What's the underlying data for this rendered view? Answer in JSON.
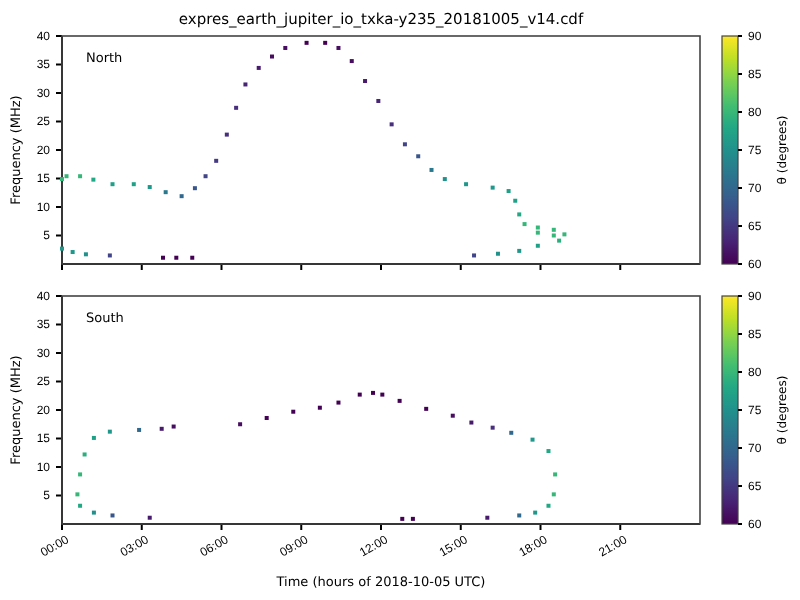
{
  "chart_data": [
    {
      "type": "scatter",
      "title": "expres_earth_jupiter_io_txka-y235_20181005_v14.cdf",
      "ylabel": "Frequency (MHz)",
      "clabel": "θ (degrees)",
      "annotations": [
        "North"
      ],
      "x": [
        0,
        0.17,
        0.68,
        1.18,
        1.9,
        2.7,
        3.3,
        3.9,
        4.5,
        5,
        5.4,
        5.8,
        6.2,
        6.55,
        6.9,
        7.4,
        7.9,
        8.4,
        9.2,
        9.9,
        10.4,
        10.9,
        11.4,
        11.9,
        12.4,
        12.9,
        13.4,
        13.9,
        14.4,
        15.2,
        16.2,
        16.8,
        17.05,
        17.2,
        17.4,
        17.9,
        18.5,
        18.9,
        18.5,
        17.9,
        18.7,
        17.9,
        17.2,
        16.4,
        15.5,
        0,
        0.4,
        0.9,
        1.8,
        3.8,
        4.3,
        4.9
      ],
      "values": [
        14.9,
        15.4,
        15.4,
        14.8,
        14,
        14,
        13.5,
        12.6,
        11.9,
        13.3,
        15.4,
        18.1,
        22.7,
        27.4,
        31.5,
        34.4,
        36.4,
        37.9,
        38.8,
        38.8,
        37.9,
        35.6,
        32.1,
        28.6,
        24.5,
        21,
        18.9,
        16.5,
        14.9,
        14,
        13.4,
        12.8,
        11.1,
        8.7,
        7,
        6.4,
        6,
        5.2,
        5,
        5.5,
        4.1,
        3.2,
        2.3,
        1.8,
        1.5,
        2.7,
        2.1,
        1.7,
        1.5,
        1.1,
        1.1,
        1.1
      ],
      "cvalues": [
        80,
        80,
        80,
        78,
        77,
        77,
        76,
        72,
        70,
        68,
        66,
        65,
        64,
        64,
        63,
        62,
        61,
        61,
        60,
        60,
        61,
        61,
        62,
        63,
        64,
        66,
        68,
        72,
        75,
        76,
        76,
        77,
        77,
        78,
        80,
        80,
        80,
        80,
        80,
        80,
        79,
        77,
        76,
        75,
        66,
        76,
        76,
        75,
        66,
        60,
        60,
        60
      ],
      "xlim": [
        0,
        24
      ],
      "xticks": [
        0,
        3,
        6,
        9,
        12,
        15,
        18,
        21
      ],
      "ylim": [
        0,
        40
      ],
      "yticks": [
        5,
        10,
        15,
        20,
        25,
        30,
        35,
        40
      ],
      "clim": [
        60,
        90
      ],
      "cticks": [
        60,
        65,
        70,
        75,
        80,
        85,
        90
      ],
      "tick_labels": "y",
      "marker": "square",
      "grid": false
    },
    {
      "type": "scatter",
      "xlabel": "Time (hours of 2018-10-05 UTC)",
      "ylabel": "Frequency (MHz)",
      "clabel": "θ (degrees)",
      "annotations": [
        "South"
      ],
      "x": [
        0.58,
        0.68,
        0.85,
        1.2,
        1.8,
        2.9,
        0.68,
        1.2,
        1.9,
        3.3,
        3.75,
        4.2,
        6.7,
        7.7,
        8.7,
        9.7,
        10.4,
        11.2,
        11.7,
        12.05,
        12.7,
        13.7,
        14.7,
        15.4,
        16.2,
        16.9,
        17.7,
        18.3,
        18.55,
        18.5,
        18.3,
        17.8,
        17.2,
        16,
        12.8,
        13.2
      ],
      "values": [
        5.2,
        8.7,
        12.2,
        15.1,
        16.2,
        16.5,
        3.2,
        2,
        1.5,
        1.1,
        16.7,
        17.1,
        17.5,
        18.6,
        19.7,
        20.4,
        21.3,
        22.7,
        23,
        22.7,
        21.6,
        20.2,
        19,
        17.8,
        16.9,
        16,
        14.8,
        12.8,
        8.7,
        5.2,
        3.2,
        2,
        1.5,
        1.1,
        0.9,
        0.9
      ],
      "cvalues": [
        80,
        80,
        79,
        77,
        76,
        70,
        78,
        75,
        68,
        62,
        62,
        61,
        61,
        60,
        60,
        60,
        60,
        60,
        60,
        60,
        60,
        60,
        61,
        62,
        64,
        70,
        76,
        78,
        80,
        80,
        78,
        76,
        70,
        62,
        60,
        60
      ],
      "xlim": [
        0,
        24
      ],
      "xticks": [
        {
          "value": 0,
          "label": "00:00"
        },
        {
          "value": 3,
          "label": "03:00"
        },
        {
          "value": 6,
          "label": "06:00"
        },
        {
          "value": 9,
          "label": "09:00"
        },
        {
          "value": 12,
          "label": "12:00"
        },
        {
          "value": 15,
          "label": "15:00"
        },
        {
          "value": 18,
          "label": "18:00"
        },
        {
          "value": 21,
          "label": "21:00"
        }
      ],
      "ylim": [
        0,
        40
      ],
      "yticks": [
        5,
        10,
        15,
        20,
        25,
        30,
        35,
        40
      ],
      "clim": [
        60,
        90
      ],
      "cticks": [
        60,
        65,
        70,
        75,
        80,
        85,
        90
      ],
      "marker": "square",
      "grid": false
    }
  ]
}
